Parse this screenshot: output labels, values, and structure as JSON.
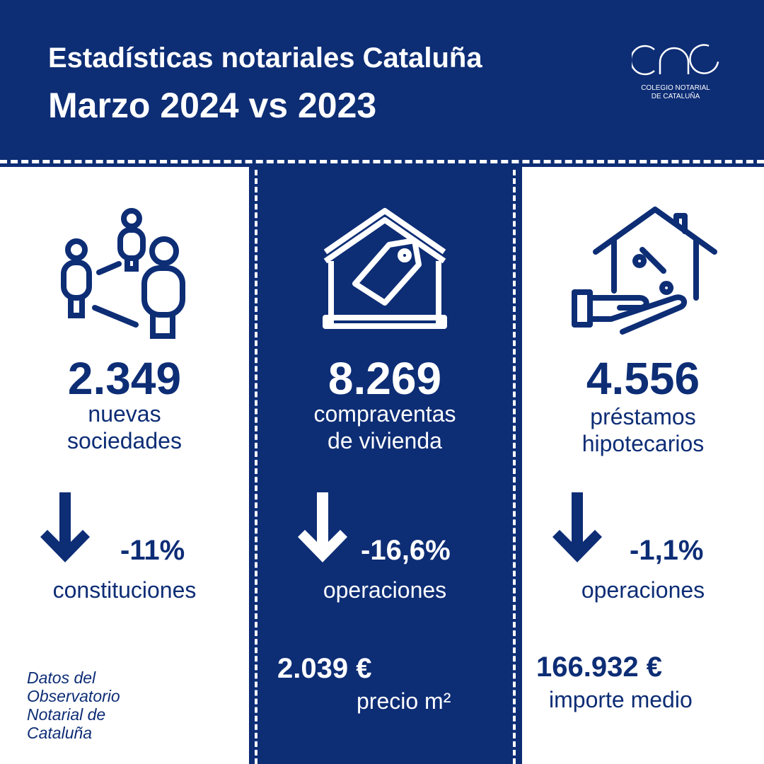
{
  "header": {
    "title": "Estadísticas notariales Cataluña",
    "subtitle": "Marzo 2024 vs 2023",
    "logo_line1": "COLEGIO NOTARIAL",
    "logo_line2": "DE CATALUÑA"
  },
  "columns": [
    {
      "icon": "people-network-icon",
      "value": "2.349",
      "label1": "nuevas",
      "label2": "sociedades",
      "change": "-11%",
      "change_label": "constituciones"
    },
    {
      "icon": "house-price-tag-icon",
      "value": "8.269",
      "label1": "compraventas",
      "label2": "de vivienda",
      "change": "-16,6%",
      "change_label": "operaciones",
      "extra_value": "2.039 €",
      "extra_label": "precio m²"
    },
    {
      "icon": "house-percent-hand-icon",
      "value": "4.556",
      "label1": "préstamos",
      "label2": "hipotecarios",
      "change": "-1,1%",
      "change_label": "operaciones",
      "extra_value": "166.932 €",
      "extra_label": "importe medio"
    }
  ],
  "source": {
    "line1": "Datos del",
    "line2": "Observatorio",
    "line3": "Notarial de",
    "line4": "Cataluña"
  },
  "colors": {
    "primary": "#0d2d75",
    "white": "#ffffff"
  }
}
